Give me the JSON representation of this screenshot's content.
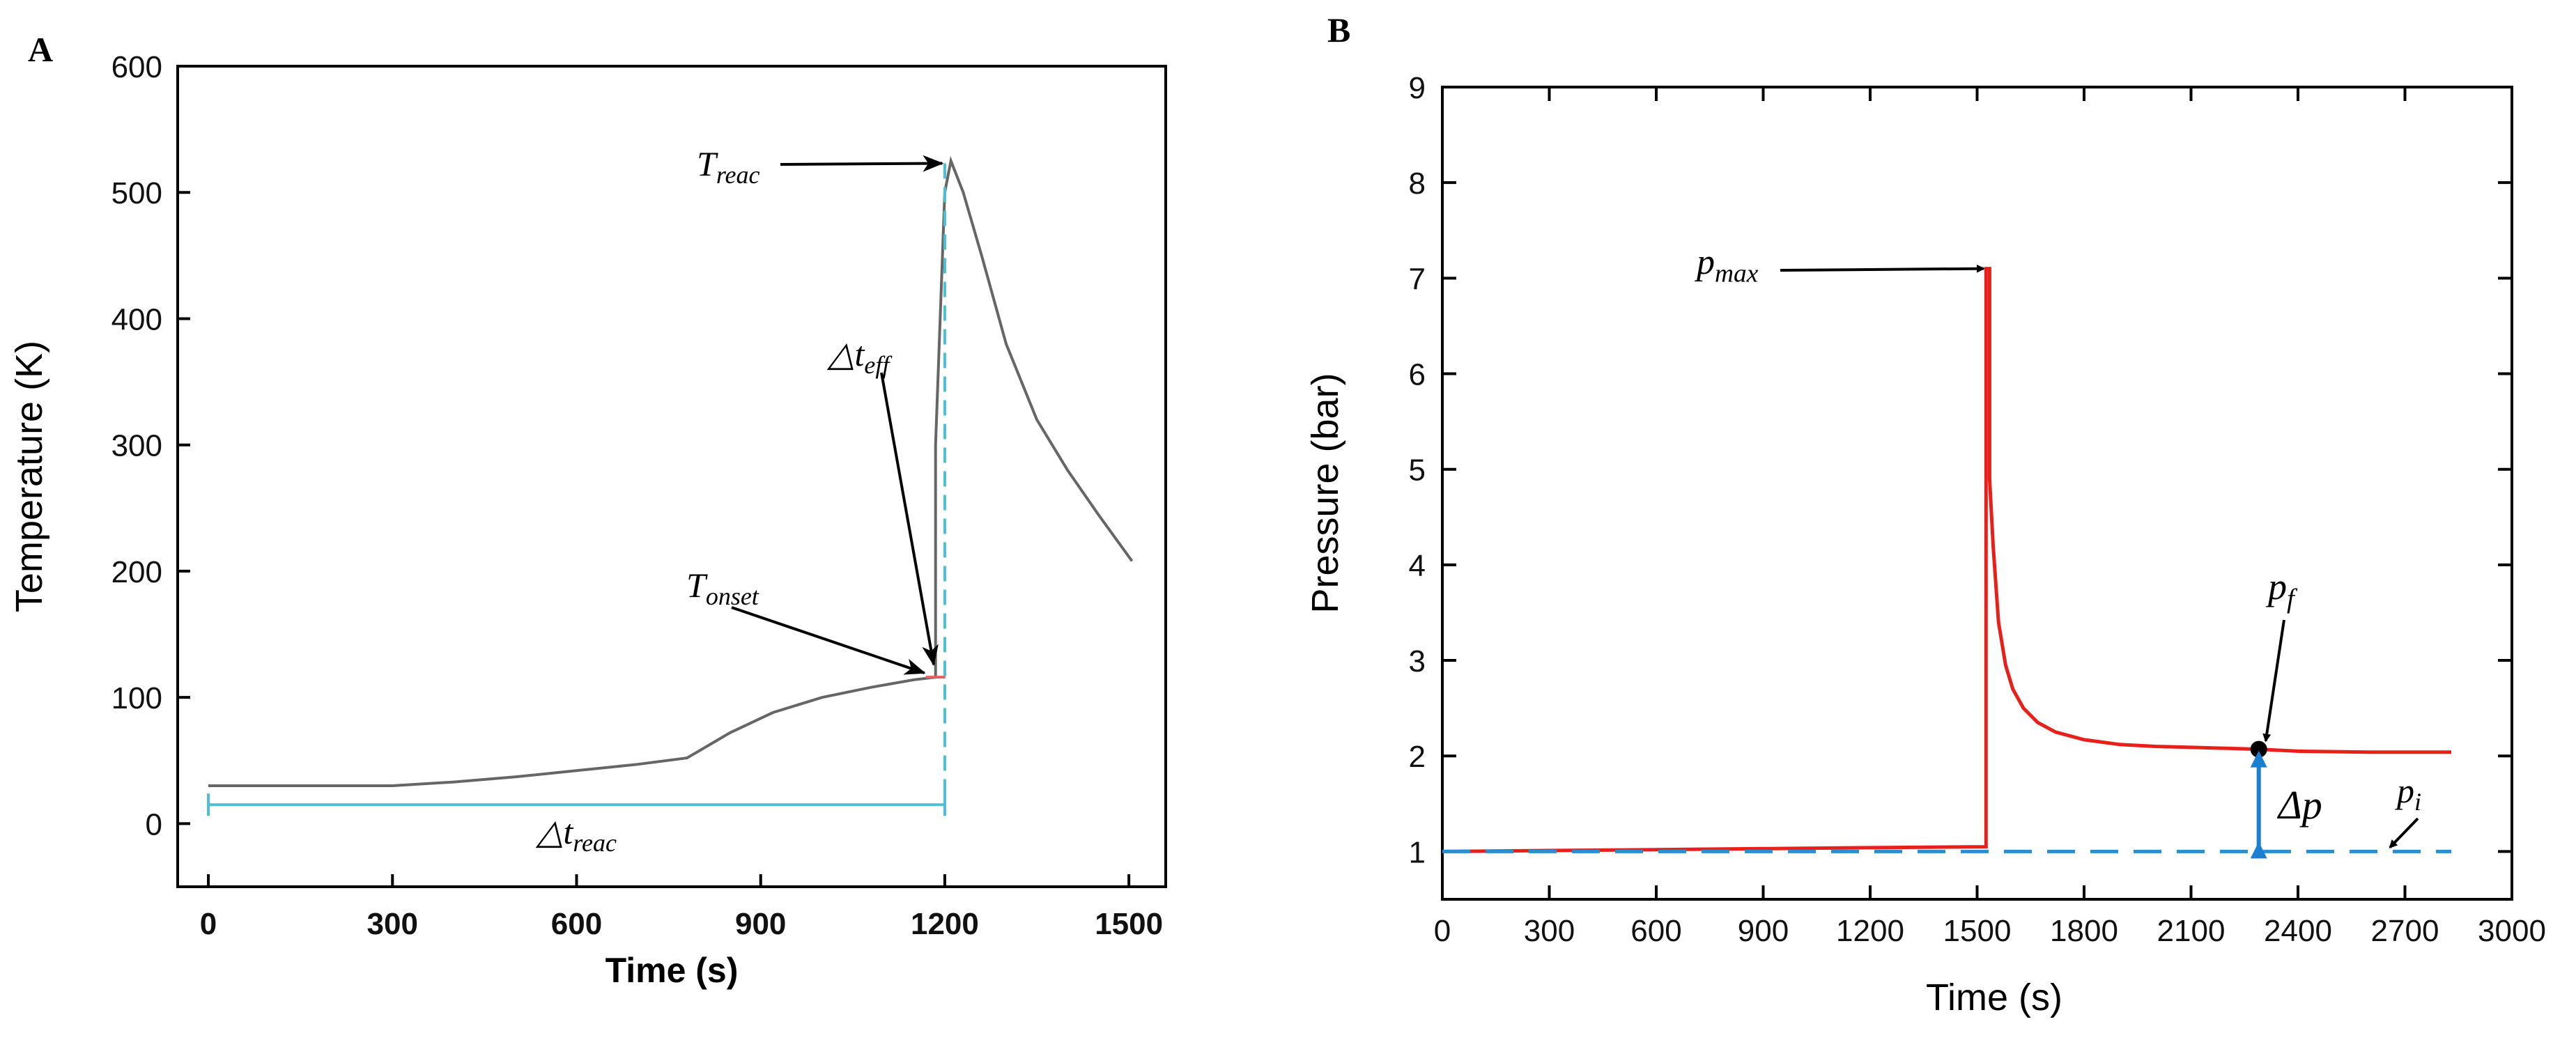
{
  "chart_data": [
    {
      "panel_label": "A",
      "type": "line",
      "title": "",
      "xlabel": "Time (s)",
      "ylabel": "Temperature (K)",
      "xlim": [
        -50,
        1560
      ],
      "ylim": [
        -50,
        600
      ],
      "xticks": [
        0,
        300,
        600,
        900,
        1200,
        1500
      ],
      "yticks": [
        0,
        100,
        200,
        300,
        400,
        500,
        600
      ],
      "grid": false,
      "series": [
        {
          "name": "Temperature",
          "color": "#666666",
          "x": [
            0,
            100,
            200,
            300,
            400,
            500,
            600,
            700,
            780,
            850,
            920,
            1000,
            1080,
            1150,
            1185,
            1185,
            1200,
            1210,
            1230,
            1260,
            1300,
            1350,
            1400,
            1450,
            1505
          ],
          "y": [
            30,
            30,
            30,
            30,
            33,
            37,
            42,
            47,
            52,
            72,
            88,
            100,
            108,
            114,
            116,
            300,
            500,
            525,
            500,
            450,
            380,
            320,
            280,
            245,
            208
          ]
        }
      ],
      "annotations": {
        "t_reac": {
          "label": "T",
          "sub": "reac",
          "x": 1205,
          "y": 523
        },
        "dt_eff": {
          "label": "△t",
          "sub": "eff"
        },
        "t_onset": {
          "label": "T",
          "sub": "onset",
          "x": 1185,
          "y": 116
        },
        "dt_reac": {
          "label": "△t",
          "sub": "reac",
          "x_start": 0,
          "x_end": 1200,
          "y": 15
        },
        "color": "#4dbfd1"
      }
    },
    {
      "panel_label": "B",
      "type": "line",
      "title": "",
      "xlabel": "Time (s)",
      "ylabel": "Pressure (bar)",
      "xlim": [
        0,
        3000
      ],
      "ylim": [
        0.5,
        9
      ],
      "xticks": [
        0,
        300,
        600,
        900,
        1200,
        1500,
        1800,
        2100,
        2400,
        2700,
        3000
      ],
      "yticks": [
        1,
        2,
        3,
        4,
        5,
        6,
        7,
        8,
        9
      ],
      "grid": false,
      "series": [
        {
          "name": "Pressure",
          "color": "#e8201a",
          "x": [
            0,
            300,
            600,
            900,
            1200,
            1525,
            1525,
            1535,
            1535,
            1545,
            1560,
            1580,
            1600,
            1630,
            1670,
            1720,
            1800,
            1900,
            2000,
            2100,
            2200,
            2290,
            2400,
            2600,
            2830
          ],
          "y": [
            1.0,
            1.01,
            1.02,
            1.03,
            1.04,
            1.05,
            7.1,
            7.1,
            4.9,
            4.2,
            3.4,
            2.95,
            2.7,
            2.5,
            2.35,
            2.25,
            2.17,
            2.12,
            2.1,
            2.09,
            2.08,
            2.07,
            2.05,
            2.04,
            2.04
          ]
        },
        {
          "name": "p_i baseline",
          "color": "#2a8fd0",
          "dashed": true,
          "x": [
            0,
            2830
          ],
          "y": [
            1.0,
            1.0
          ]
        }
      ],
      "annotations": {
        "p_max": {
          "label": "p",
          "sub": "max",
          "x": 1530,
          "y": 7.1
        },
        "p_f": {
          "label": "p",
          "sub": "f",
          "x": 2290,
          "y": 2.07
        },
        "p_i": {
          "label": "p",
          "sub": "i",
          "x": 2700,
          "y": 1.0
        },
        "delta_p": {
          "label": "Δp",
          "x": 2290,
          "y_top": 2.07,
          "y_bottom": 1.0
        },
        "color": "#1a7fd0"
      }
    }
  ]
}
